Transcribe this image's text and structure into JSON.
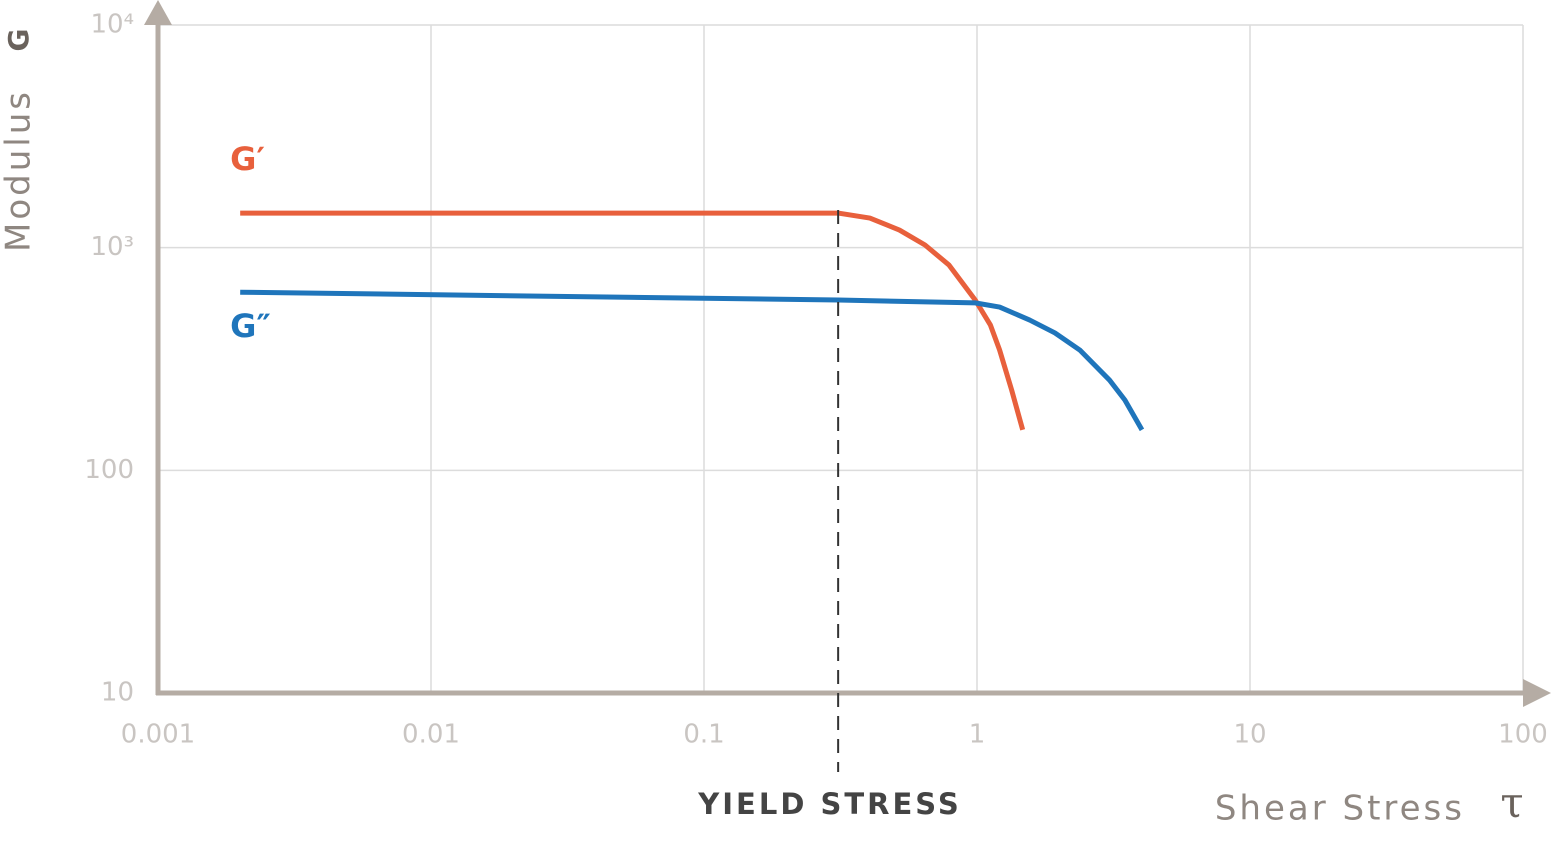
{
  "chart_data": {
    "type": "line",
    "x_label": "Shear Stress",
    "x_symbol": "τ",
    "y_label": "Modulus",
    "y_symbol": "G",
    "xscale": "log",
    "yscale": "log",
    "grid": true,
    "xlim": [
      0.001,
      100
    ],
    "xticks": [
      0.001,
      0.01,
      0.1,
      1,
      10,
      100
    ],
    "ylim": [
      10,
      10000
    ],
    "yticks": [
      10,
      100,
      {
        "value": 1000,
        "label": "10³"
      },
      {
        "value": 10000,
        "label": "10⁴"
      }
    ],
    "series": [
      {
        "name": "G′",
        "color": "#e8603c",
        "x": [
          0.002,
          0.1,
          0.31,
          0.405,
          0.52,
          0.645,
          0.79,
          0.985,
          1.12,
          1.21,
          1.34,
          1.47
        ],
        "values": [
          1430,
          1430,
          1430,
          1358,
          1200,
          1028,
          835,
          582,
          449,
          347,
          229,
          152
        ]
      },
      {
        "name": "G″",
        "color": "#1f75bb",
        "x": [
          0.002,
          0.31,
          0.985,
          1.21,
          1.56,
          1.93,
          2.38,
          3.06,
          3.48,
          4.02
        ],
        "values": [
          631,
          582,
          565,
          541,
          473,
          414,
          347,
          254,
          207,
          152
        ]
      }
    ],
    "annotations": [
      {
        "text": "YIELD STRESS",
        "x": 0.31
      }
    ]
  }
}
